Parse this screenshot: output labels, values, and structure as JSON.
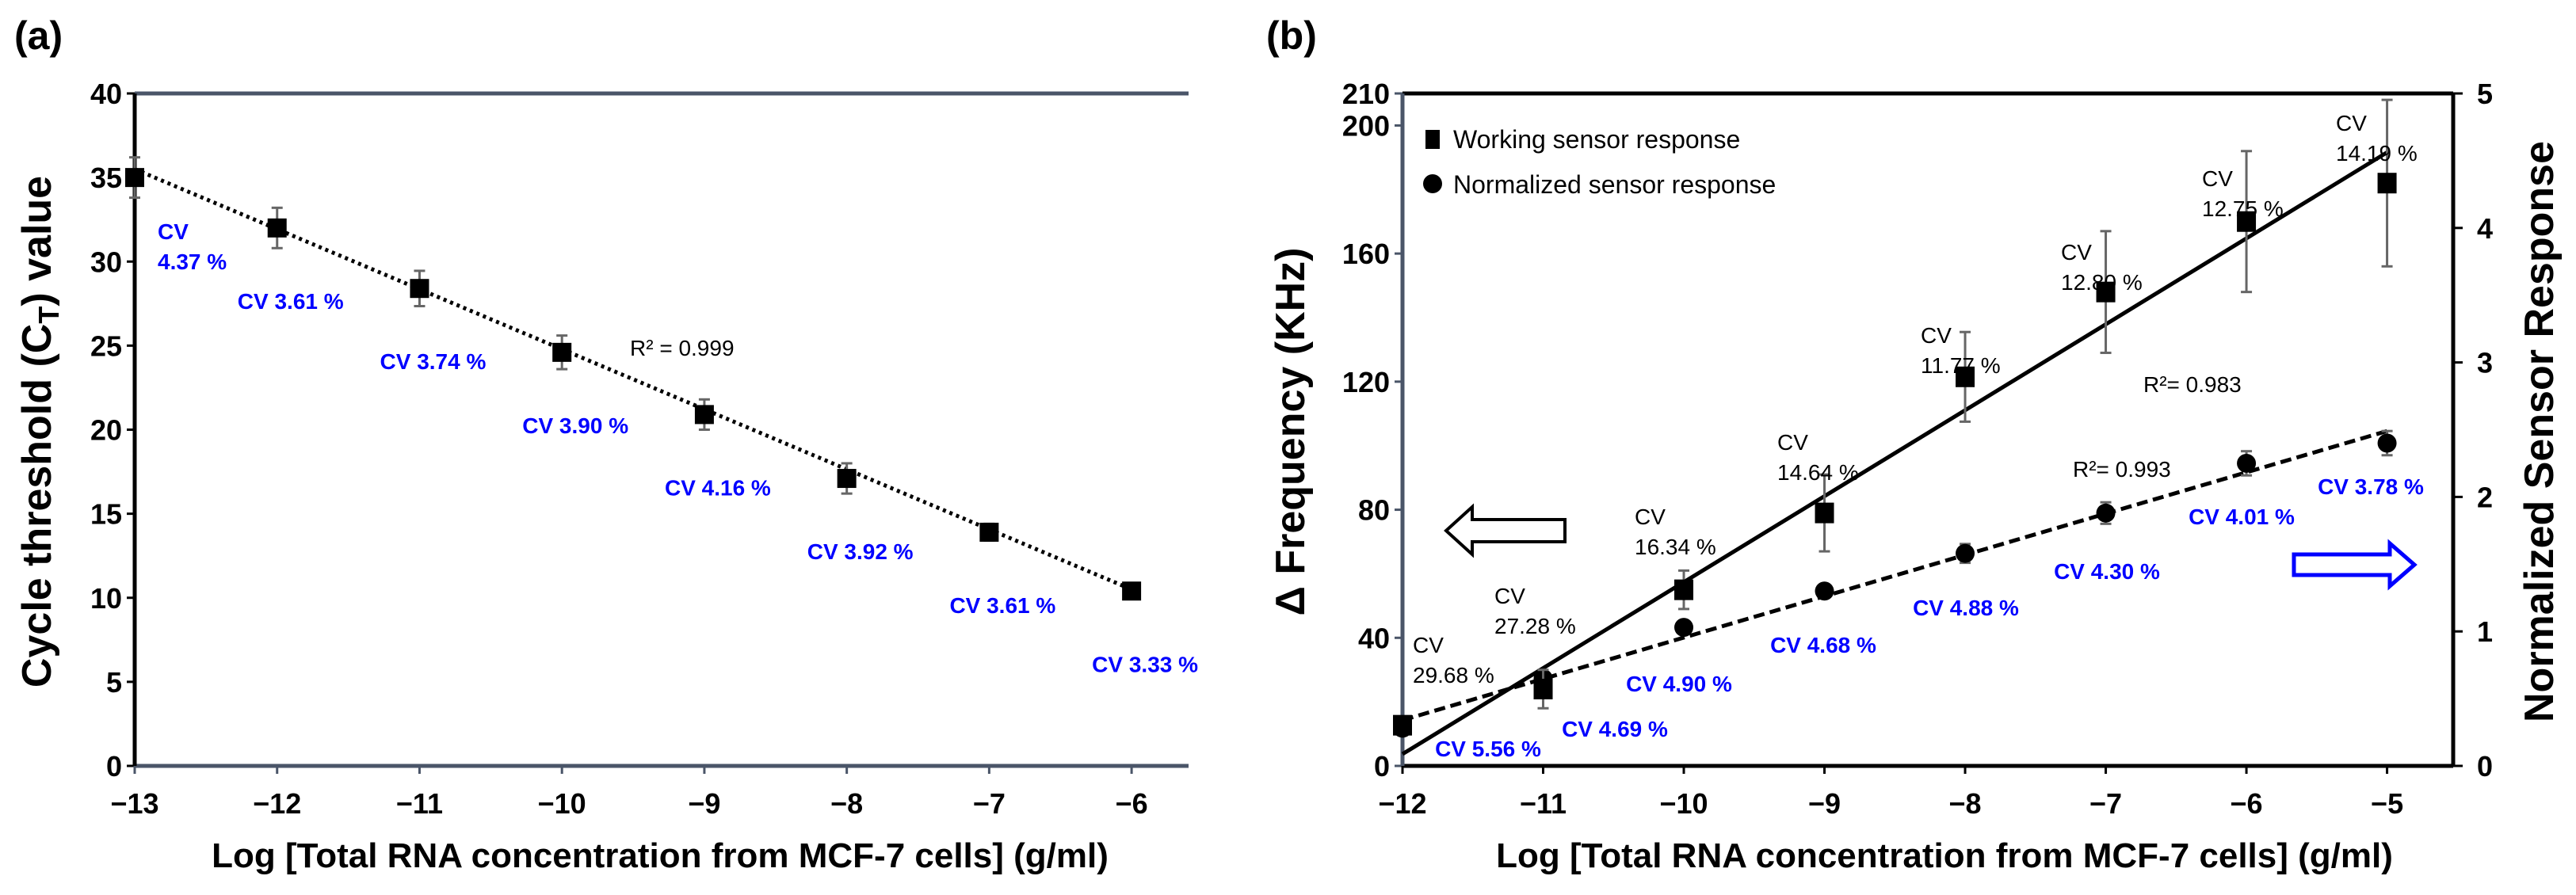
{
  "chart_data": [
    {
      "panel": "(a)",
      "type": "scatter",
      "xlabel": "Log [Total RNA concentration from MCF-7 cells] (g/ml)",
      "ylabel_parts": [
        "Cycle threshold (C",
        "T",
        ") value"
      ],
      "xlim": [
        -13,
        -5.6
      ],
      "ylim": [
        0,
        40
      ],
      "xticks": [
        -13,
        -12,
        -11,
        -10,
        -9,
        -8,
        -7,
        -6
      ],
      "xtick_labels": [
        "−13",
        "−12",
        "−11",
        "−10",
        "−9",
        "−8",
        "−7",
        "−6"
      ],
      "yticks": [
        0,
        5,
        10,
        15,
        20,
        25,
        30,
        35,
        40
      ],
      "ytick_labels": [
        "0",
        "5",
        "10",
        "15",
        "20",
        "25",
        "30",
        "35",
        "40"
      ],
      "series": [
        {
          "name": "Ct",
          "x": [
            -13,
            -12,
            -11,
            -10,
            -9,
            -8,
            -7,
            -6
          ],
          "y": [
            35.0,
            32.0,
            28.4,
            24.6,
            20.9,
            17.1,
            13.9,
            10.4
          ],
          "err": [
            1.2,
            1.2,
            1.05,
            1.0,
            0.9,
            0.9,
            0.5,
            0.3
          ],
          "cv_labels": [
            "CV 4.37 %",
            "CV 3.61 %",
            "CV 3.74 %",
            "CV 3.90 %",
            "CV 4.16 %",
            "CV 3.92 %",
            "CV 3.61 %",
            "CV 3.33 %"
          ],
          "first_label_lines": [
            "CV",
            "4.37 %"
          ],
          "fit": {
            "x": [
              -13,
              -6
            ],
            "y": [
              35.5,
              10.5
            ],
            "style": "dotted",
            "r2_label": "R² = 0.999"
          }
        }
      ],
      "colors": {
        "cv": "#0000ff",
        "marker": "#000000",
        "axis": "#4a5568",
        "errorbar": "#666666"
      }
    },
    {
      "panel": "(b)",
      "type": "scatter",
      "xlabel": "Log [Total RNA concentration from MCF-7 cells] (g/ml)",
      "ylabel": "Δ Frequency (KHz)",
      "y2label": "Normalized Sensor Response",
      "xlim": [
        -12,
        -4.53
      ],
      "ylim": [
        0,
        210
      ],
      "y2lim": [
        0,
        5
      ],
      "xticks": [
        -12,
        -11,
        -10,
        -9,
        -8,
        -7,
        -6,
        -5
      ],
      "xtick_labels": [
        "−12",
        "−11",
        "−10",
        "−9",
        "−8",
        "−7",
        "−6",
        "−5"
      ],
      "yticks": [
        0,
        40,
        80,
        120,
        160,
        200,
        210
      ],
      "ytick_labels": [
        "0",
        "40",
        "80",
        "120",
        "160",
        "200",
        "210"
      ],
      "y2ticks": [
        0,
        1,
        2,
        3,
        4,
        5
      ],
      "y2tick_labels": [
        "0",
        "1",
        "2",
        "3",
        "4",
        "5"
      ],
      "legend": {
        "position": "top-left",
        "entries": [
          "Working sensor response",
          "Normalized sensor response"
        ]
      },
      "series": [
        {
          "name": "Working sensor response",
          "axis": "left",
          "marker": "square",
          "x": [
            -12,
            -11,
            -10,
            -9,
            -8,
            -7,
            -6,
            -5
          ],
          "y": [
            12.7,
            24,
            55,
            79,
            121.5,
            148,
            170,
            182
          ],
          "err": [
            2,
            6,
            6,
            12,
            14,
            19,
            22,
            26
          ],
          "cv_label_lines": [
            [
              "CV",
              "29.68 %"
            ],
            [
              "CV",
              "27.28 %"
            ],
            [
              "CV",
              "16.34 %"
            ],
            [
              "CV",
              "14.64 %"
            ],
            [
              "CV",
              "11.77 %"
            ],
            [
              "CV",
              "12.80 %"
            ],
            [
              "CV",
              "12.75 %"
            ],
            [
              "CV",
              "14.19 %"
            ]
          ],
          "fit": {
            "x": [
              -12,
              -5
            ],
            "y": [
              3.7,
              191.6
            ],
            "style": "solid",
            "r2_label": "R²= 0.983"
          }
        },
        {
          "name": "Normalized sensor response",
          "axis": "right",
          "marker": "circle",
          "x": [
            -12,
            -11,
            -10,
            -9,
            -8,
            -7,
            -6,
            -5
          ],
          "y": [
            0.28,
            0.65,
            1.03,
            1.3,
            1.58,
            1.88,
            2.25,
            2.4
          ],
          "err": [
            0.02,
            0.03,
            0.05,
            0.05,
            0.07,
            0.08,
            0.09,
            0.09
          ],
          "cv_labels": [
            "CV 5.56 %",
            "CV 4.69 %",
            "CV 4.90 %",
            "CV 4.68 %",
            "CV 4.88 %",
            "CV 4.30 %",
            "CV 4.01 %",
            "CV 3.78 %"
          ],
          "fit": {
            "x": [
              -12,
              -5
            ],
            "y": [
              0.34,
              2.49
            ],
            "style": "dashed",
            "r2_label": "R²= 0.993"
          }
        }
      ],
      "arrows": [
        {
          "direction": "left",
          "axis": "left",
          "color": "#000000"
        },
        {
          "direction": "right",
          "axis": "right",
          "color": "#0000ff"
        }
      ],
      "colors": {
        "cv": "#0000ff",
        "marker": "#000000",
        "axis": "#4a5568",
        "errorbar": "#666666"
      }
    }
  ]
}
